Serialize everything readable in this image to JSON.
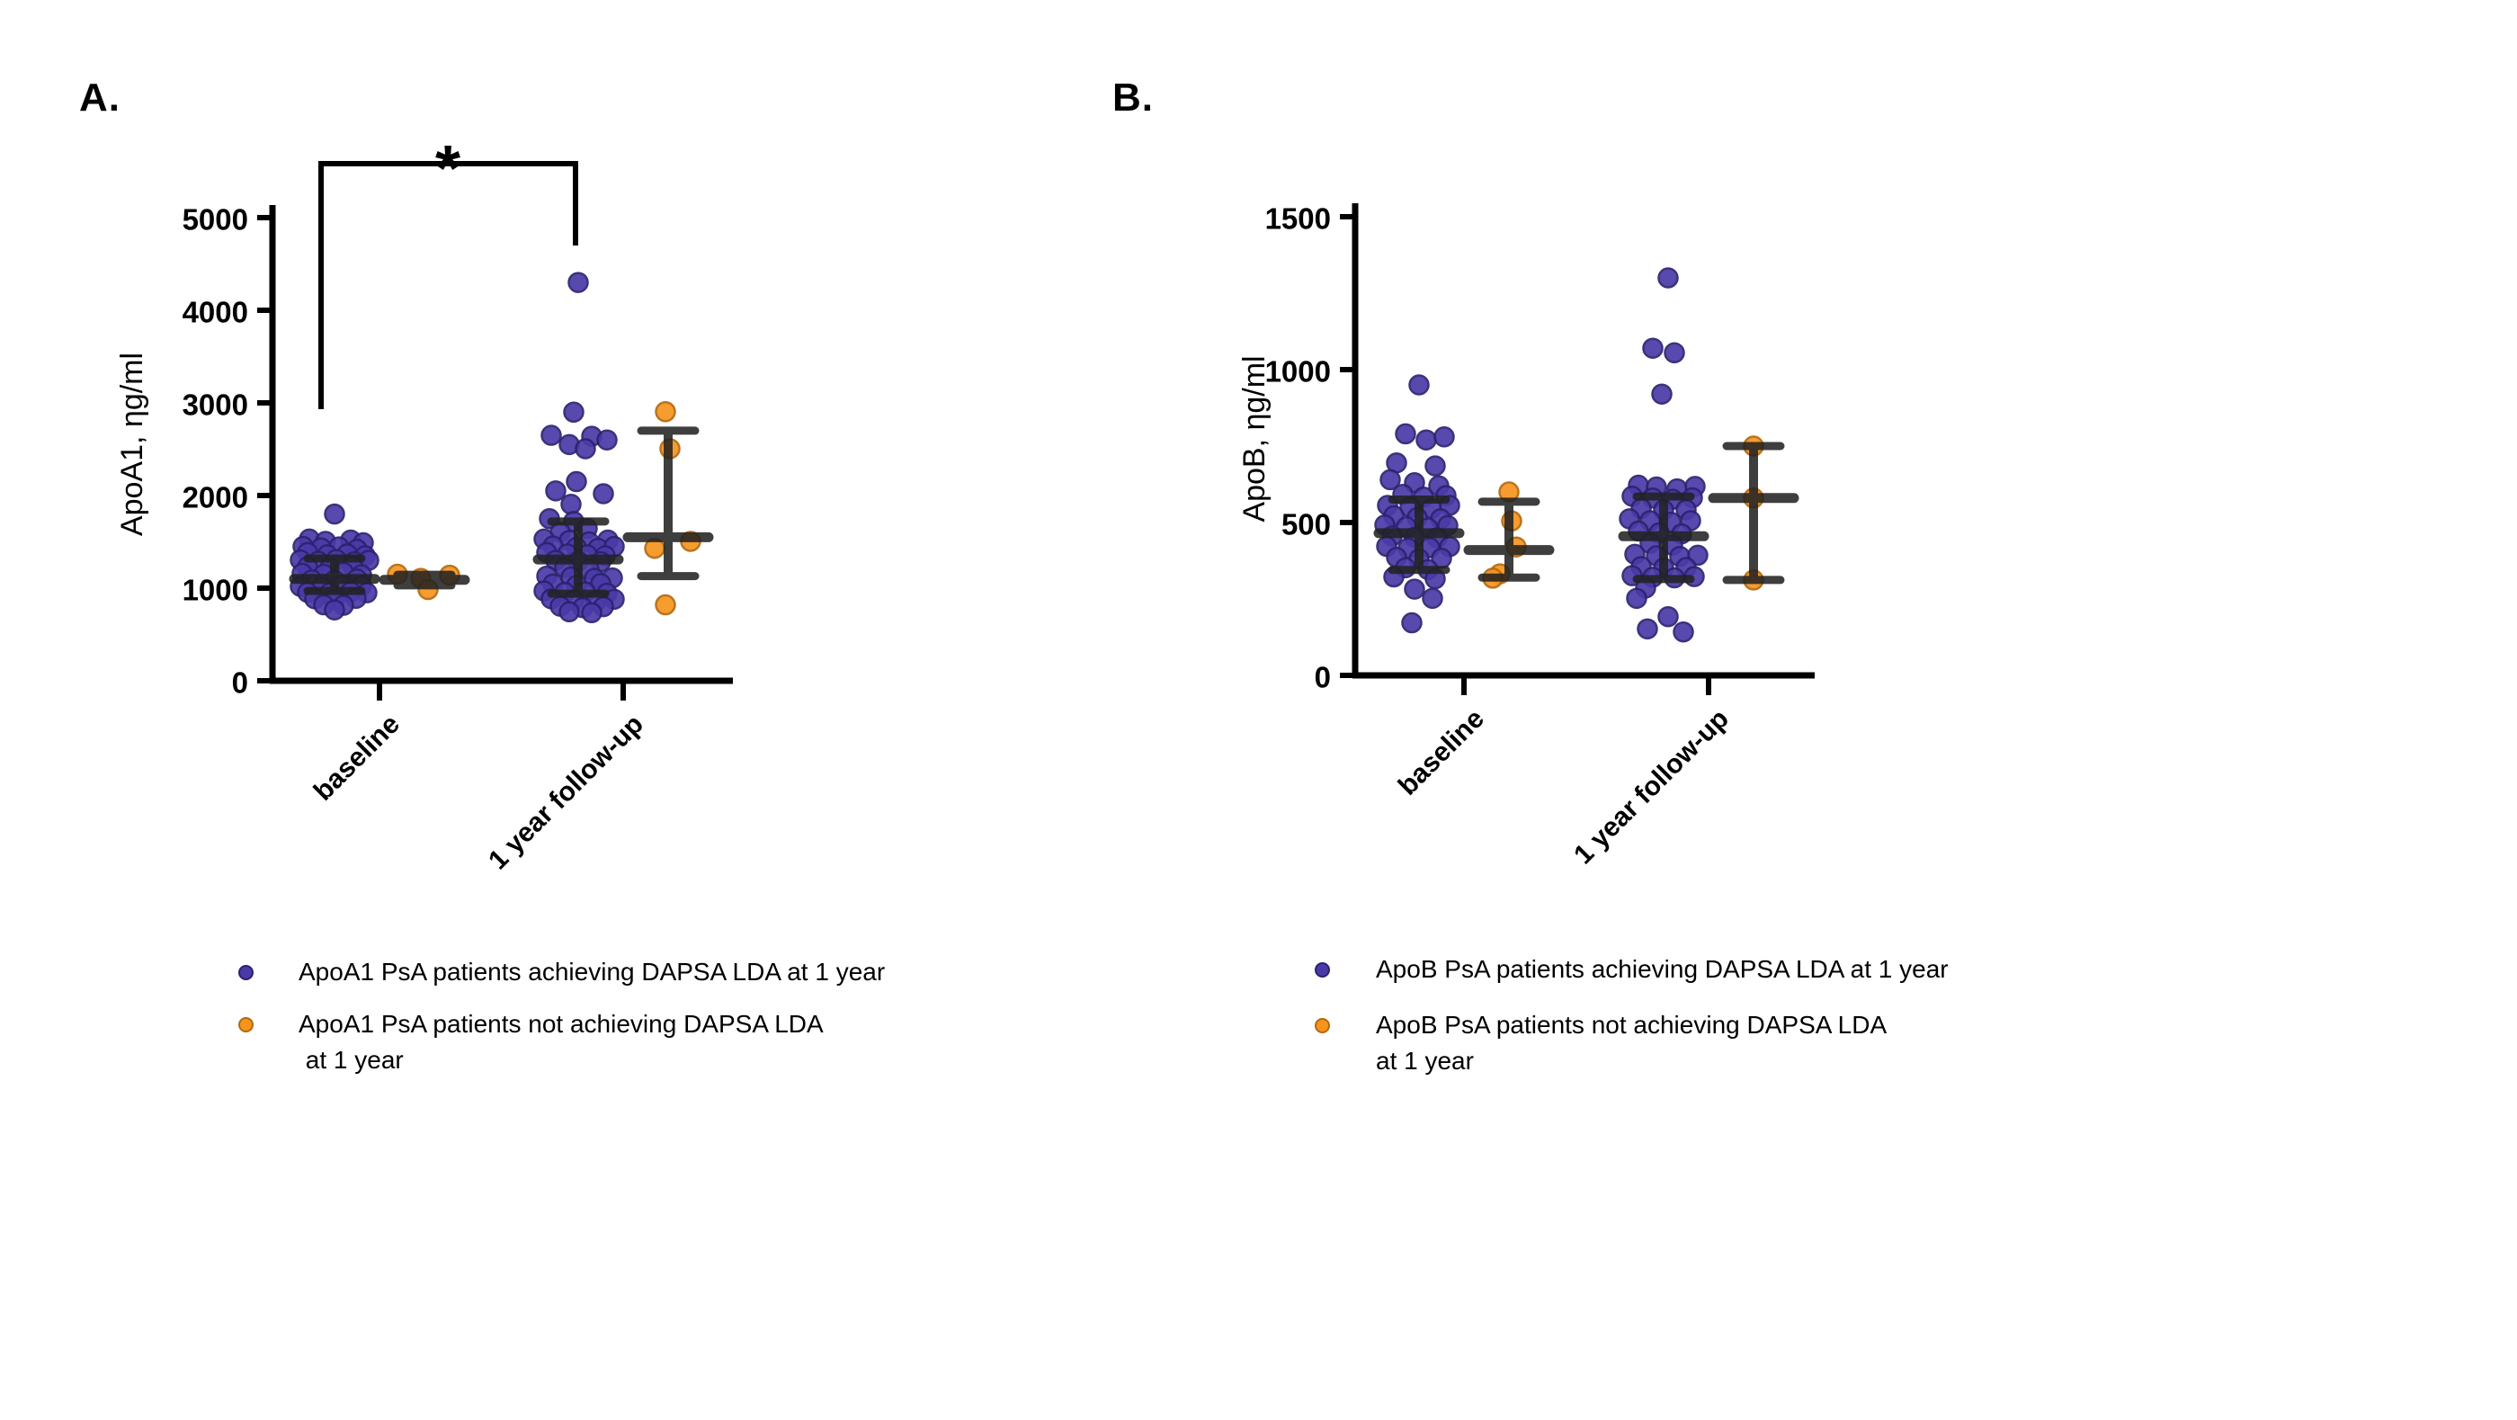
{
  "figure": {
    "background": "#ffffff",
    "series_colors": {
      "achieving": {
        "fill": "#4a3aa8",
        "stroke": "#2a2270"
      },
      "not_achieving": {
        "fill": "#f7941e",
        "stroke": "#b4690e"
      }
    },
    "errorbar_color": "#222222",
    "axis_color": "#000000"
  },
  "chart_data": [
    {
      "type": "scatter",
      "panel_label": "A.",
      "ylabel": "ApoA1, ηg/ml",
      "ylim": [
        0,
        5000
      ],
      "yticks": [
        0,
        1000,
        2000,
        3000,
        4000,
        5000
      ],
      "categories": [
        "baseline",
        "1 year follow-up"
      ],
      "grid": "off",
      "significance": {
        "symbol": "*",
        "between": [
          "baseline",
          "1 year follow-up"
        ]
      },
      "points_format": "[x_jitter_px, value]",
      "groups": [
        {
          "category": "baseline",
          "series": "achieving",
          "median": 1100,
          "q1": 970,
          "q3": 1320,
          "points": [
            [
              0,
              1800
            ],
            [
              -28,
              1530
            ],
            [
              -10,
              1505
            ],
            [
              18,
              1520
            ],
            [
              32,
              1490
            ],
            [
              -35,
              1450
            ],
            [
              -15,
              1435
            ],
            [
              5,
              1445
            ],
            [
              25,
              1420
            ],
            [
              -30,
              1385
            ],
            [
              -8,
              1360
            ],
            [
              14,
              1370
            ],
            [
              34,
              1350
            ],
            [
              -38,
              1305
            ],
            [
              -18,
              1290
            ],
            [
              2,
              1310
            ],
            [
              22,
              1285
            ],
            [
              38,
              1300
            ],
            [
              -30,
              1230
            ],
            [
              -5,
              1220
            ],
            [
              20,
              1240
            ],
            [
              -36,
              1160
            ],
            [
              -12,
              1150
            ],
            [
              10,
              1170
            ],
            [
              30,
              1145
            ],
            [
              -25,
              1090
            ],
            [
              0,
              1085
            ],
            [
              25,
              1100
            ],
            [
              -38,
              1020
            ],
            [
              -14,
              1010
            ],
            [
              8,
              1030
            ],
            [
              30,
              1025
            ],
            [
              -30,
              955
            ],
            [
              -6,
              945
            ],
            [
              18,
              960
            ],
            [
              36,
              950
            ],
            [
              -22,
              885
            ],
            [
              0,
              875
            ],
            [
              24,
              890
            ],
            [
              -12,
              820
            ],
            [
              10,
              815
            ],
            [
              0,
              765
            ]
          ]
        },
        {
          "category": "baseline",
          "series": "not_achieving",
          "median": 1090,
          "q1": 1030,
          "q3": 1145,
          "points": [
            [
              -30,
              1150
            ],
            [
              28,
              1140
            ],
            [
              -4,
              1105
            ],
            [
              4,
              985
            ]
          ]
        },
        {
          "category": "1 year follow-up",
          "series": "achieving",
          "median": 1310,
          "q1": 940,
          "q3": 1720,
          "points": [
            [
              0,
              4300
            ],
            [
              -5,
              2900
            ],
            [
              -30,
              2650
            ],
            [
              15,
              2640
            ],
            [
              32,
              2600
            ],
            [
              -10,
              2550
            ],
            [
              8,
              2505
            ],
            [
              -2,
              2150
            ],
            [
              -25,
              2050
            ],
            [
              28,
              2020
            ],
            [
              -8,
              1905
            ],
            [
              -32,
              1750
            ],
            [
              -5,
              1720
            ],
            [
              10,
              1645
            ],
            [
              -20,
              1605
            ],
            [
              -38,
              1530
            ],
            [
              -10,
              1515
            ],
            [
              12,
              1500
            ],
            [
              33,
              1520
            ],
            [
              -28,
              1455
            ],
            [
              -2,
              1440
            ],
            [
              22,
              1430
            ],
            [
              40,
              1450
            ],
            [
              -35,
              1385
            ],
            [
              -12,
              1370
            ],
            [
              10,
              1360
            ],
            [
              30,
              1350
            ],
            [
              -25,
              1300
            ],
            [
              0,
              1290
            ],
            [
              25,
              1285
            ],
            [
              -15,
              1225
            ],
            [
              12,
              1205
            ],
            [
              -35,
              1130
            ],
            [
              -8,
              1120
            ],
            [
              18,
              1105
            ],
            [
              38,
              1110
            ],
            [
              -28,
              1045
            ],
            [
              -2,
              1030
            ],
            [
              25,
              1050
            ],
            [
              -38,
              970
            ],
            [
              -15,
              955
            ],
            [
              8,
              960
            ],
            [
              32,
              945
            ],
            [
              -30,
              885
            ],
            [
              -5,
              870
            ],
            [
              20,
              860
            ],
            [
              40,
              880
            ],
            [
              -20,
              805
            ],
            [
              5,
              790
            ],
            [
              28,
              800
            ],
            [
              -10,
              745
            ],
            [
              15,
              735
            ]
          ]
        },
        {
          "category": "1 year follow-up",
          "series": "not_achieving",
          "median": 1550,
          "q1": 1130,
          "q3": 2700,
          "points": [
            [
              -3,
              2905
            ],
            [
              2,
              2505
            ],
            [
              25,
              1505
            ],
            [
              -15,
              1430
            ],
            [
              -3,
              820
            ]
          ]
        }
      ],
      "legend": [
        {
          "series": "achieving",
          "lines": [
            "ApoA1 PsA patients achieving DAPSA LDA at 1 year"
          ]
        },
        {
          "series": "not_achieving",
          "lines": [
            "ApoA1 PsA patients not achieving DAPSA LDA",
            " at 1 year"
          ]
        }
      ]
    },
    {
      "type": "scatter",
      "panel_label": "B.",
      "ylabel": "ApoB, ηg/ml",
      "ylim": [
        0,
        1500
      ],
      "yticks": [
        0,
        500,
        1000,
        1500
      ],
      "categories": [
        "baseline",
        "1 year follow-up"
      ],
      "grid": "off",
      "significance": null,
      "points_format": "[x_jitter_px, value]",
      "groups": [
        {
          "category": "baseline",
          "series": "achieving",
          "median": 465,
          "q1": 345,
          "q3": 575,
          "points": [
            [
              0,
              950
            ],
            [
              -15,
              790
            ],
            [
              8,
              770
            ],
            [
              28,
              780
            ],
            [
              -25,
              695
            ],
            [
              18,
              685
            ],
            [
              -32,
              640
            ],
            [
              -5,
              630
            ],
            [
              22,
              620
            ],
            [
              -18,
              592
            ],
            [
              5,
              583
            ],
            [
              30,
              588
            ],
            [
              -35,
              556
            ],
            [
              -10,
              550
            ],
            [
              14,
              546
            ],
            [
              34,
              556
            ],
            [
              -28,
              522
            ],
            [
              -2,
              516
            ],
            [
              24,
              512
            ],
            [
              -38,
              492
            ],
            [
              -14,
              486
            ],
            [
              10,
              482
            ],
            [
              32,
              490
            ],
            [
              -30,
              456
            ],
            [
              -5,
              452
            ],
            [
              20,
              450
            ],
            [
              -36,
              422
            ],
            [
              -12,
              416
            ],
            [
              12,
              418
            ],
            [
              34,
              421
            ],
            [
              -25,
              386
            ],
            [
              0,
              381
            ],
            [
              25,
              383
            ],
            [
              -15,
              352
            ],
            [
              10,
              346
            ],
            [
              -28,
              322
            ],
            [
              18,
              316
            ],
            [
              -5,
              282
            ],
            [
              15,
              252
            ],
            [
              -8,
              172
            ]
          ]
        },
        {
          "category": "baseline",
          "series": "not_achieving",
          "median": 410,
          "q1": 320,
          "q3": 568,
          "points": [
            [
              0,
              600
            ],
            [
              3,
              505
            ],
            [
              8,
              420
            ],
            [
              -10,
              332
            ],
            [
              -18,
              318
            ]
          ]
        },
        {
          "category": "1 year follow-up",
          "series": "achieving",
          "median": 455,
          "q1": 315,
          "q3": 585,
          "points": [
            [
              5,
              1300
            ],
            [
              -12,
              1070
            ],
            [
              12,
              1055
            ],
            [
              -2,
              920
            ],
            [
              -28,
              622
            ],
            [
              -8,
              616
            ],
            [
              15,
              610
            ],
            [
              35,
              618
            ],
            [
              -35,
              586
            ],
            [
              -12,
              580
            ],
            [
              10,
              576
            ],
            [
              32,
              581
            ],
            [
              -25,
              546
            ],
            [
              0,
              541
            ],
            [
              25,
              542
            ],
            [
              -38,
              512
            ],
            [
              -15,
              506
            ],
            [
              8,
              501
            ],
            [
              30,
              506
            ],
            [
              -28,
              472
            ],
            [
              -5,
              466
            ],
            [
              20,
              463
            ],
            [
              -15,
              432
            ],
            [
              10,
              426
            ],
            [
              -32,
              396
            ],
            [
              -8,
              391
            ],
            [
              18,
              389
            ],
            [
              38,
              393
            ],
            [
              -25,
              356
            ],
            [
              0,
              351
            ],
            [
              25,
              353
            ],
            [
              -35,
              326
            ],
            [
              -12,
              321
            ],
            [
              12,
              319
            ],
            [
              34,
              323
            ],
            [
              -20,
              286
            ],
            [
              -30,
              252
            ],
            [
              5,
              192
            ],
            [
              -18,
              152
            ],
            [
              22,
              142
            ]
          ]
        },
        {
          "category": "1 year follow-up",
          "series": "not_achieving",
          "median": 580,
          "q1": 312,
          "q3": 750,
          "points": [
            [
              0,
              750
            ],
            [
              0,
              580
            ],
            [
              0,
              312
            ]
          ]
        }
      ],
      "legend": [
        {
          "series": "achieving",
          "lines": [
            "ApoB PsA patients achieving DAPSA LDA at 1 year"
          ]
        },
        {
          "series": "not_achieving",
          "lines": [
            "ApoB PsA patients not achieving DAPSA LDA",
            "at 1 year"
          ]
        }
      ]
    }
  ]
}
